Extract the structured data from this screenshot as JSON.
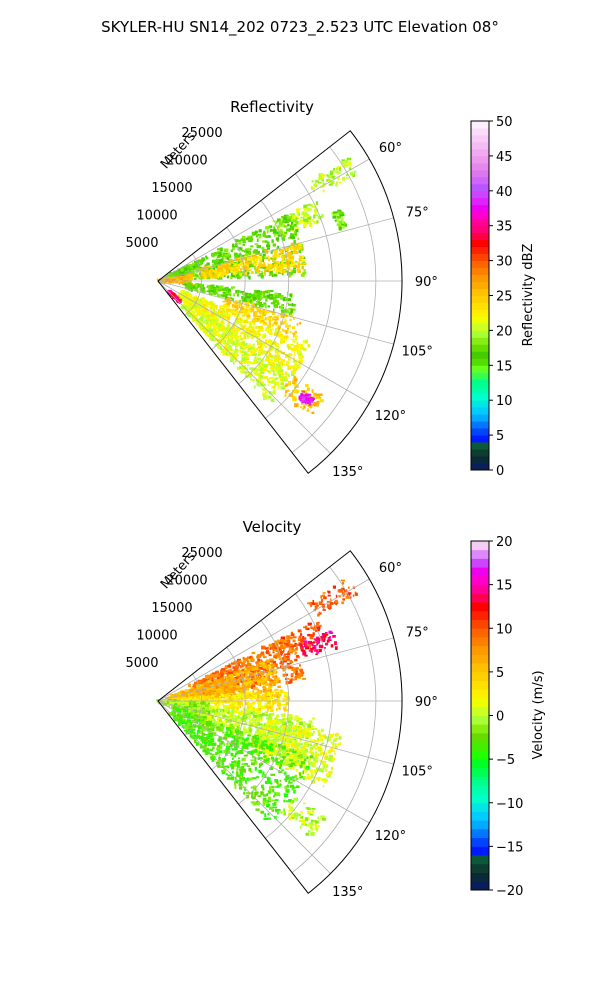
{
  "figure": {
    "title": "SKYLER-HU  SN14_202  0723_2.523 UTC Elevation 08°"
  },
  "chart_data": [
    {
      "type": "heatmap",
      "title": "Reflectivity",
      "projection": "polar sector",
      "radial_label": "Meters",
      "range_ticks": [
        5000,
        10000,
        15000,
        20000,
        25000
      ],
      "range_tick_labels": [
        "5000",
        "10000",
        "15000",
        "20000",
        "25000"
      ],
      "range_lim": [
        0,
        28000
      ],
      "azimuth_lim": [
        52,
        142
      ],
      "azimuth_ticks": [
        60,
        75,
        90,
        105,
        120,
        135
      ],
      "azimuth_tick_labels": [
        "60°",
        "75°",
        "90°",
        "105°",
        "120°",
        "135°"
      ],
      "grid": true,
      "colorbar": {
        "label": "Reflectivity dBZ",
        "range": [
          0,
          50
        ],
        "ticks": [
          0,
          5,
          10,
          15,
          20,
          25,
          30,
          35,
          40,
          45,
          50
        ],
        "tick_labels": [
          "0",
          "5",
          "10",
          "15",
          "20",
          "25",
          "30",
          "35",
          "40",
          "45",
          "50"
        ]
      },
      "echo_regions": [
        {
          "az_range": [
            57,
            62
          ],
          "range_m": [
            20500,
            26000
          ],
          "value": 20
        },
        {
          "az_range": [
            63,
            70
          ],
          "range_m": [
            14500,
            20500
          ],
          "value": 20
        },
        {
          "az_range": [
            69,
            74
          ],
          "range_m": [
            21500,
            22500
          ],
          "value": 18
        },
        {
          "az_range": [
            63,
            88
          ],
          "range_m": [
            1000,
            17000
          ],
          "value": 17
        },
        {
          "az_range": [
            75,
            86
          ],
          "range_m": [
            5000,
            17000
          ],
          "value": 24
        },
        {
          "az_range": [
            80,
            95
          ],
          "range_m": [
            0,
            4000
          ],
          "value": 26
        },
        {
          "az_range": [
            95,
            104
          ],
          "range_m": [
            3000,
            16000
          ],
          "value": 17
        },
        {
          "az_range": [
            104,
            112
          ],
          "range_m": [
            8000,
            17000
          ],
          "value": 24
        },
        {
          "az_range": [
            112,
            128
          ],
          "range_m": [
            3000,
            19000
          ],
          "value": 22
        },
        {
          "az_range": [
            125,
            138
          ],
          "range_m": [
            4000,
            19000
          ],
          "value": 21
        },
        {
          "az_range": [
            125,
            132
          ],
          "range_m": [
            19000,
            23500
          ],
          "value": 25
        },
        {
          "az_range": [
            132,
            136
          ],
          "range_m": [
            1500,
            3500
          ],
          "value": 34
        },
        {
          "az_range": [
            127,
            130
          ],
          "range_m": [
            21000,
            22500
          ],
          "value": 38
        }
      ]
    },
    {
      "type": "heatmap",
      "title": "Velocity",
      "projection": "polar sector",
      "radial_label": "Meters",
      "range_ticks": [
        5000,
        10000,
        15000,
        20000,
        25000
      ],
      "range_tick_labels": [
        "5000",
        "10000",
        "15000",
        "20000",
        "25000"
      ],
      "range_lim": [
        0,
        28000
      ],
      "azimuth_lim": [
        52,
        142
      ],
      "azimuth_ticks": [
        60,
        75,
        90,
        105,
        120,
        135
      ],
      "azimuth_tick_labels": [
        "60°",
        "75°",
        "90°",
        "105°",
        "120°",
        "135°"
      ],
      "grid": true,
      "colorbar": {
        "label": "Velocity (m/s)",
        "range": [
          -20,
          20
        ],
        "ticks": [
          -20,
          -15,
          -10,
          -5,
          0,
          5,
          10,
          15,
          20
        ],
        "tick_labels": [
          "−20",
          "−15",
          "−10",
          "−5",
          "0",
          "5",
          "10",
          "15",
          "20"
        ]
      },
      "echo_regions": [
        {
          "az_range": [
            57,
            62
          ],
          "range_m": [
            20500,
            26000
          ],
          "value": 10
        },
        {
          "az_range": [
            63,
            70
          ],
          "range_m": [
            14500,
            20500
          ],
          "value": 10
        },
        {
          "az_range": [
            68,
            74
          ],
          "range_m": [
            17500,
            21500
          ],
          "value": 14
        },
        {
          "az_range": [
            63,
            82
          ],
          "range_m": [
            4000,
            17000
          ],
          "value": 9
        },
        {
          "az_range": [
            70,
            88
          ],
          "range_m": [
            1000,
            14000
          ],
          "value": 6
        },
        {
          "az_range": [
            85,
            96
          ],
          "range_m": [
            1000,
            15000
          ],
          "value": 3
        },
        {
          "az_range": [
            96,
            115
          ],
          "range_m": [
            4000,
            18000
          ],
          "value": 0
        },
        {
          "az_range": [
            100,
            118
          ],
          "range_m": [
            12000,
            21500
          ],
          "value": 1
        },
        {
          "az_range": [
            90,
            110
          ],
          "range_m": [
            0,
            6000
          ],
          "value": -1
        },
        {
          "az_range": [
            110,
            138
          ],
          "range_m": [
            2000,
            19000
          ],
          "value": -3
        },
        {
          "az_range": [
            125,
            132
          ],
          "range_m": [
            19000,
            23500
          ],
          "value": 0
        }
      ]
    }
  ]
}
